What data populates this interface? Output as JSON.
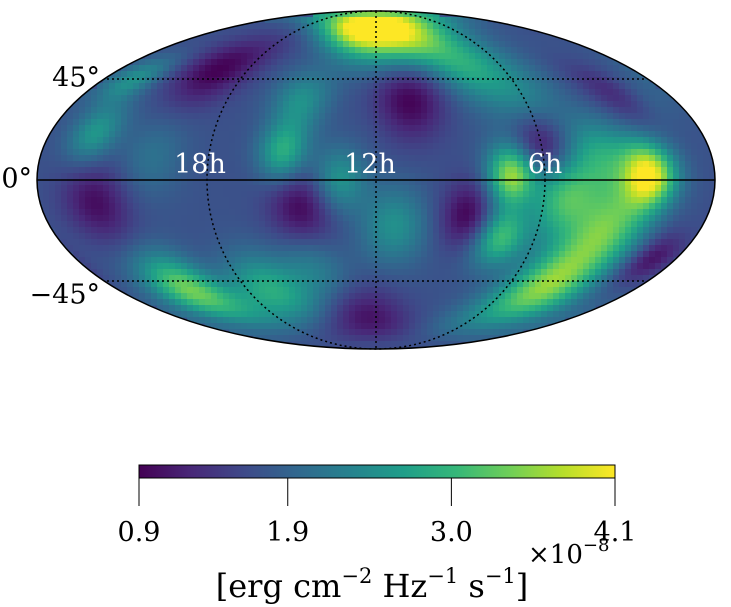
{
  "chart_data": {
    "type": "heatmap",
    "projection": "mollweide",
    "colormap": "viridis",
    "colormap_stops": [
      "#440154",
      "#482878",
      "#3e4a89",
      "#31688e",
      "#26828e",
      "#1f9e89",
      "#35b779",
      "#6ece58",
      "#b5de2b",
      "#fde725"
    ],
    "meridian_labels": [
      "18h",
      "12h",
      "6h"
    ],
    "meridian_hours": [
      18,
      12,
      6
    ],
    "parallel_labels": [
      "45°",
      "0°",
      "−45°"
    ],
    "parallel_degrees": [
      45,
      0,
      -45
    ],
    "grid": true,
    "colorbar": {
      "orientation": "horizontal",
      "vmin": 0.9,
      "vmax": 4.1,
      "ticks": [
        0.9,
        1.9,
        3.0,
        4.1
      ],
      "tick_labels": [
        "0.9",
        "1.9",
        "3.0",
        "4.1"
      ],
      "multiplier": "×10",
      "multiplier_exponent": "−8",
      "unit_label": {
        "open": "[erg cm",
        "e1": "−2",
        "hz": " Hz",
        "e2": "−1",
        "s": " s",
        "e3": "−1",
        "close": "]"
      }
    },
    "field_blobs": [
      {
        "lon": 145,
        "lat": 2,
        "value": 4.1,
        "width": 10
      },
      {
        "lon": 128,
        "lat": -22,
        "value": 3.2,
        "width": 14
      },
      {
        "lon": 120,
        "lat": 10,
        "value": 2.7,
        "width": 12
      },
      {
        "lon": 115,
        "lat": -50,
        "value": 3.4,
        "width": 14
      },
      {
        "lon": 100,
        "lat": -8,
        "value": 3.0,
        "width": 12
      },
      {
        "lon": 72,
        "lat": 2,
        "value": 3.6,
        "width": 9
      },
      {
        "lon": 70,
        "lat": -25,
        "value": 3.1,
        "width": 9
      },
      {
        "lon": 60,
        "lat": 55,
        "value": 2.6,
        "width": 12
      },
      {
        "lon": 85,
        "lat": 40,
        "value": 2.4,
        "width": 14
      },
      {
        "lon": 30,
        "lat": 72,
        "value": 3.0,
        "width": 12
      },
      {
        "lon": 0,
        "lat": 65,
        "value": 2.7,
        "width": 12
      },
      {
        "lon": 10,
        "lat": -20,
        "value": 2.5,
        "width": 12
      },
      {
        "lon": -20,
        "lat": 0,
        "value": 2.6,
        "width": 10
      },
      {
        "lon": -20,
        "lat": 75,
        "value": 3.3,
        "width": 10
      },
      {
        "lon": -45,
        "lat": 35,
        "value": 2.5,
        "width": 10
      },
      {
        "lon": -50,
        "lat": 12,
        "value": 2.9,
        "width": 9
      },
      {
        "lon": -75,
        "lat": -50,
        "value": 2.8,
        "width": 12
      },
      {
        "lon": -130,
        "lat": -50,
        "value": 3.4,
        "width": 12
      },
      {
        "lon": -155,
        "lat": 20,
        "value": 2.6,
        "width": 9
      },
      {
        "lon": -160,
        "lat": 45,
        "value": 2.5,
        "width": 8
      },
      {
        "lon": -40,
        "lat": -40,
        "value": 2.3,
        "width": 12
      },
      {
        "lon": 160,
        "lat": 40,
        "value": 2.2,
        "width": 10
      },
      {
        "lon": -120,
        "lat": 10,
        "value": 2.1,
        "width": 12
      },
      {
        "lon": 90,
        "lat": 15,
        "value": 0.9,
        "width": 10
      },
      {
        "lon": 50,
        "lat": -15,
        "value": 0.9,
        "width": 10
      },
      {
        "lon": 20,
        "lat": 35,
        "value": 0.9,
        "width": 12
      },
      {
        "lon": -40,
        "lat": -12,
        "value": 0.9,
        "width": 12
      },
      {
        "lon": -110,
        "lat": 50,
        "value": 0.9,
        "width": 12
      },
      {
        "lon": -150,
        "lat": -10,
        "value": 1.0,
        "width": 12
      },
      {
        "lon": 150,
        "lat": 40,
        "value": 1.0,
        "width": 10
      },
      {
        "lon": -10,
        "lat": -65,
        "value": 1.0,
        "width": 12
      },
      {
        "lon": 165,
        "lat": -35,
        "value": 1.0,
        "width": 8
      }
    ]
  }
}
